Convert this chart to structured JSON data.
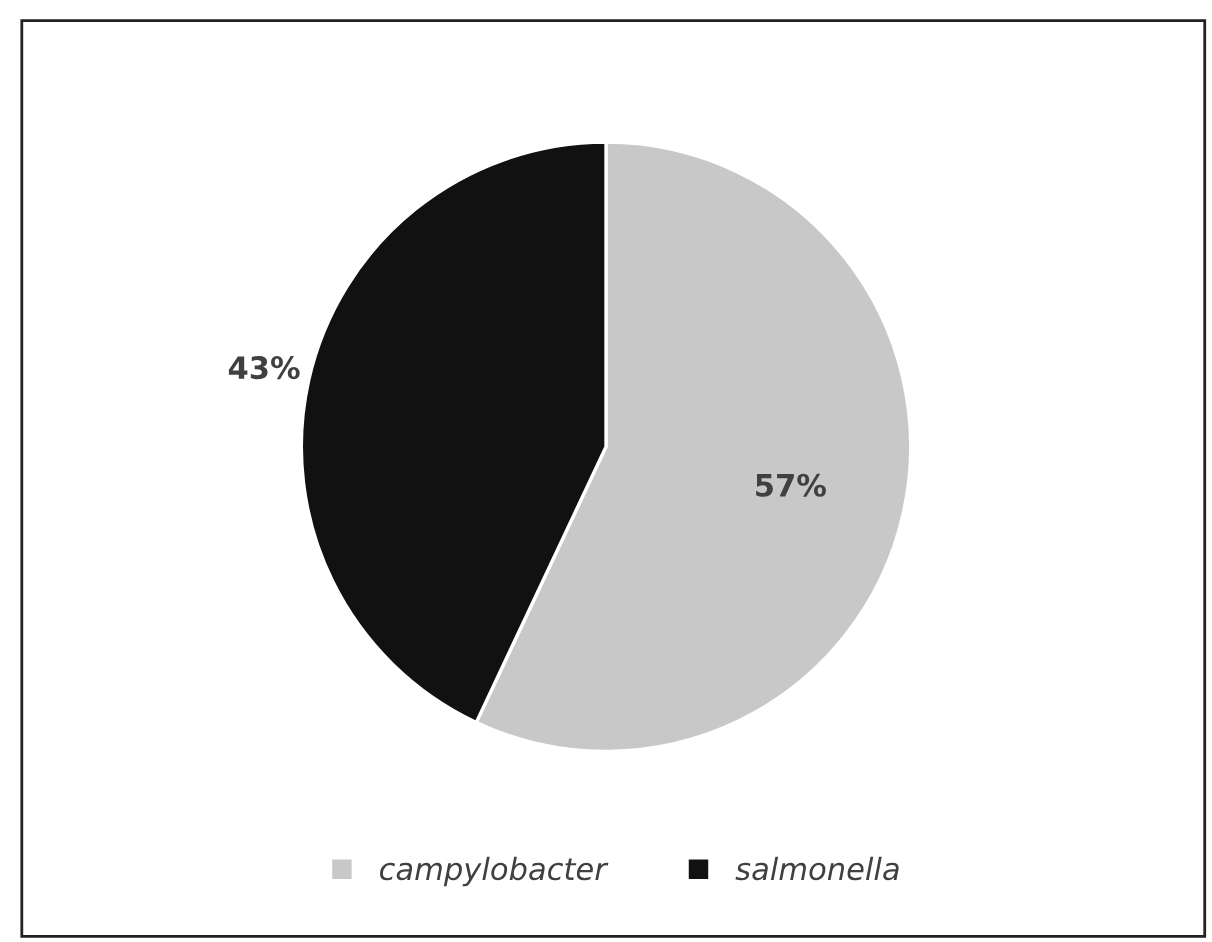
{
  "chart_data": {
    "type": "pie",
    "categories": [
      "campylobacter",
      "salmonella"
    ],
    "values": [
      57,
      43
    ],
    "colors": [
      "#c8c8c8",
      "#111111"
    ],
    "value_labels": [
      "57%",
      "43%"
    ],
    "legend": "bottom"
  }
}
